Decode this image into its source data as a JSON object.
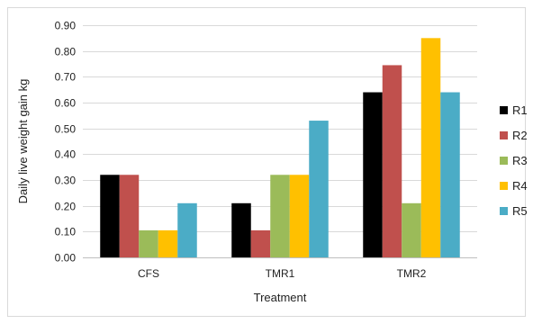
{
  "chart_data": {
    "type": "bar",
    "categories": [
      "CFS",
      "TMR1",
      "TMR2"
    ],
    "series": [
      {
        "name": "R1",
        "values": [
          0.32,
          0.21,
          0.64
        ],
        "color": "#000000"
      },
      {
        "name": "R2",
        "values": [
          0.32,
          0.105,
          0.745
        ],
        "color": "#c0504d"
      },
      {
        "name": "R3",
        "values": [
          0.105,
          0.32,
          0.21
        ],
        "color": "#9bbb59"
      },
      {
        "name": "R4",
        "values": [
          0.105,
          0.32,
          0.85
        ],
        "color": "#ffc000"
      },
      {
        "name": "R5",
        "values": [
          0.21,
          0.53,
          0.64
        ],
        "color": "#4bacc6"
      }
    ],
    "xlabel": "Treatment",
    "ylabel": "Daily live weight gain kg",
    "ylim": [
      0,
      0.9
    ],
    "yticks": [
      "0.00",
      "0.10",
      "0.20",
      "0.30",
      "0.40",
      "0.50",
      "0.60",
      "0.70",
      "0.80",
      "0.90"
    ],
    "grid": true,
    "legend_position": "right"
  }
}
